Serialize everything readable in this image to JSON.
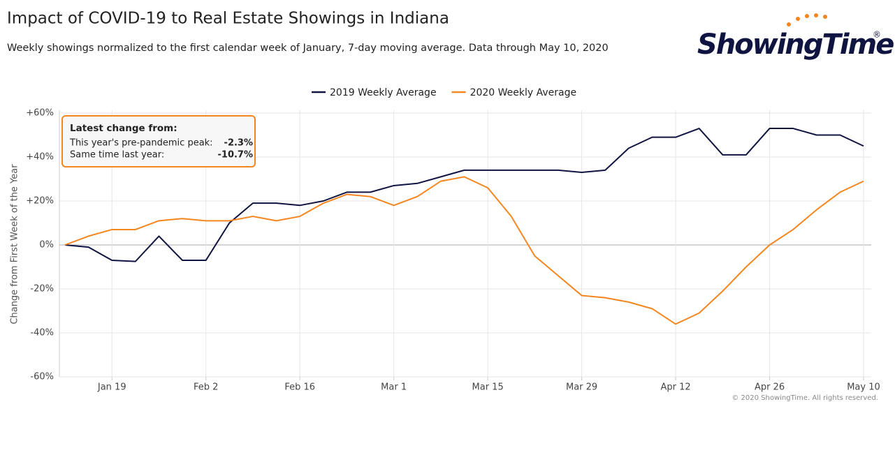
{
  "chart_data": {
    "type": "line",
    "title": "Impact of COVID-19 to Real Estate Showings in Indiana",
    "subtitle": "Weekly showings normalized to the first calendar week of January, 7-day moving average. Data through May 10, 2020",
    "logo": "ShowingTime",
    "logo_mark": "®",
    "y_label": "Change from First Week of the Year",
    "copyright": "© 2020 ShowingTime. All rights reserved.",
    "x": [
      "Jan 12",
      "Jan 15",
      "Jan 19",
      "Jan 22",
      "Jan 26",
      "Jan 29",
      "Feb 2",
      "Feb 5",
      "Feb 9",
      "Feb 12",
      "Feb 16",
      "Feb 19",
      "Feb 23",
      "Feb 26",
      "Mar 1",
      "Mar 4",
      "Mar 8",
      "Mar 11",
      "Mar 15",
      "Mar 18",
      "Mar 22",
      "Mar 25",
      "Mar 29",
      "Apr 1",
      "Apr 5",
      "Apr 8",
      "Apr 12",
      "Apr 15",
      "Apr 19",
      "Apr 22",
      "Apr 26",
      "Apr 29",
      "May 3",
      "May 6",
      "May 10"
    ],
    "xticks": [
      "Jan 19",
      "Feb 2",
      "Feb 16",
      "Mar 1",
      "Mar 15",
      "Mar 29",
      "Apr 12",
      "Apr 26",
      "May 10"
    ],
    "series": [
      {
        "name": "2019 Weekly Average",
        "color": "#0f1441",
        "values": [
          0,
          -1,
          -7,
          -7.5,
          4,
          -7,
          -7,
          10,
          19,
          19,
          18,
          20,
          24,
          24,
          27,
          28,
          31,
          34,
          34,
          34,
          34,
          34,
          33,
          34,
          44,
          49,
          49,
          53,
          41,
          41,
          53,
          53,
          50,
          50,
          45
        ]
      },
      {
        "name": "2020 Weekly Average",
        "color": "#f5861f",
        "values": [
          0,
          4,
          7,
          7,
          11,
          12,
          11,
          11,
          13,
          11,
          13,
          19,
          23,
          22,
          18,
          22,
          29,
          31,
          26,
          13,
          -5,
          -14,
          -23,
          -24,
          -26,
          -29,
          -36,
          -31,
          -21,
          -10,
          0,
          7,
          16,
          24,
          29
        ]
      }
    ],
    "ylim": [
      -60,
      60
    ],
    "yticks": [
      {
        "value": 60,
        "label": "+60%"
      },
      {
        "value": 40,
        "label": "+40%"
      },
      {
        "value": 20,
        "label": "+20%"
      },
      {
        "value": 0,
        "label": "0%"
      },
      {
        "value": -20,
        "label": "-20%"
      },
      {
        "value": -40,
        "label": "-40%"
      },
      {
        "value": -60,
        "label": "-60%"
      }
    ],
    "grid": true,
    "annotation": {
      "heading": "Latest change from:",
      "rows": [
        [
          "This year's pre-pandemic peak:",
          "-2.3%"
        ],
        [
          "Same time last year:",
          "-10.7%"
        ]
      ]
    }
  }
}
